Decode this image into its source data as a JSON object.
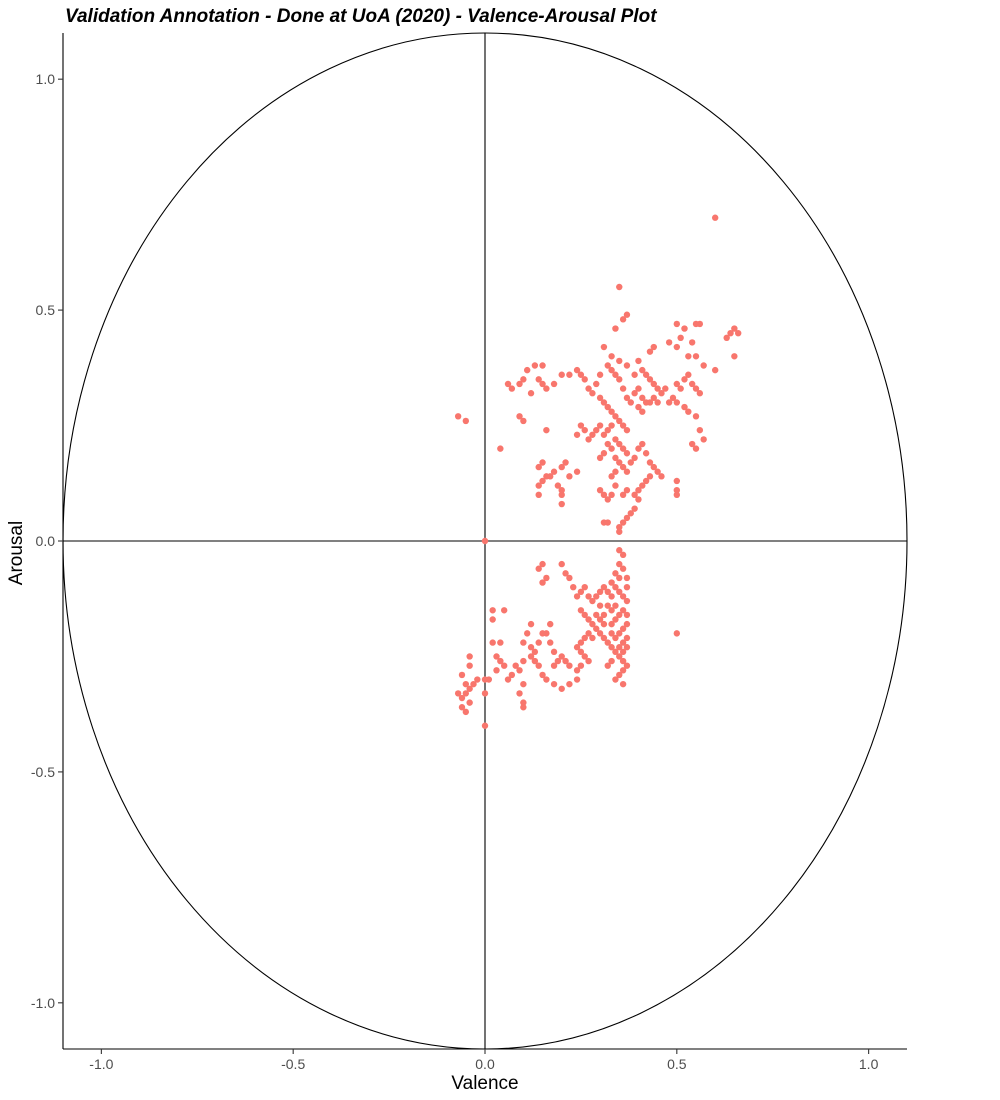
{
  "chart_data": {
    "type": "scatter",
    "title": "Validation Annotation - Done at UoA (2020) - Valence-Arousal Plot",
    "xlabel": "Valence",
    "ylabel": "Arousal",
    "xlim": [
      -1.1,
      1.1
    ],
    "ylim": [
      -1.1,
      1.1
    ],
    "x_ticks": [
      -1.0,
      -0.5,
      0.0,
      0.5,
      1.0
    ],
    "y_ticks": [
      -1.0,
      -0.5,
      0.0,
      0.5,
      1.0
    ],
    "x_tick_labels": [
      "-1.0",
      "-0.5",
      "0.0",
      "0.5",
      "1.0"
    ],
    "y_tick_labels": [
      "-1.0",
      "-0.5",
      "0.0",
      "0.5",
      "1.0"
    ],
    "grid": false,
    "reference_circle_radius": 1.1,
    "reference_lines": [
      "x=0",
      "y=0"
    ],
    "point_color": "#F8766D",
    "line_color": "#000000",
    "points": [
      [
        0.6,
        0.7
      ],
      [
        0.35,
        0.55
      ],
      [
        0.36,
        0.48
      ],
      [
        0.37,
        0.49
      ],
      [
        0.34,
        0.46
      ],
      [
        0.5,
        0.47
      ],
      [
        0.52,
        0.46
      ],
      [
        0.55,
        0.47
      ],
      [
        0.56,
        0.47
      ],
      [
        0.65,
        0.46
      ],
      [
        0.66,
        0.45
      ],
      [
        0.64,
        0.45
      ],
      [
        0.63,
        0.44
      ],
      [
        0.48,
        0.43
      ],
      [
        0.51,
        0.44
      ],
      [
        0.54,
        0.43
      ],
      [
        0.5,
        0.42
      ],
      [
        0.53,
        0.4
      ],
      [
        0.65,
        0.4
      ],
      [
        0.55,
        0.4
      ],
      [
        0.57,
        0.38
      ],
      [
        0.6,
        0.37
      ],
      [
        0.44,
        0.42
      ],
      [
        0.43,
        0.41
      ],
      [
        0.4,
        0.39
      ],
      [
        0.31,
        0.42
      ],
      [
        0.33,
        0.4
      ],
      [
        0.35,
        0.39
      ],
      [
        0.37,
        0.38
      ],
      [
        0.39,
        0.36
      ],
      [
        0.41,
        0.37
      ],
      [
        0.42,
        0.36
      ],
      [
        0.43,
        0.35
      ],
      [
        0.44,
        0.34
      ],
      [
        0.45,
        0.33
      ],
      [
        0.46,
        0.32
      ],
      [
        0.47,
        0.33
      ],
      [
        0.5,
        0.34
      ],
      [
        0.51,
        0.33
      ],
      [
        0.52,
        0.35
      ],
      [
        0.53,
        0.36
      ],
      [
        0.54,
        0.34
      ],
      [
        0.55,
        0.33
      ],
      [
        0.56,
        0.32
      ],
      [
        0.49,
        0.31
      ],
      [
        0.48,
        0.3
      ],
      [
        0.5,
        0.3
      ],
      [
        0.52,
        0.29
      ],
      [
        0.53,
        0.28
      ],
      [
        0.55,
        0.27
      ],
      [
        0.56,
        0.24
      ],
      [
        0.57,
        0.22
      ],
      [
        0.55,
        0.2
      ],
      [
        0.54,
        0.21
      ],
      [
        0.4,
        0.33
      ],
      [
        0.39,
        0.32
      ],
      [
        0.41,
        0.31
      ],
      [
        0.42,
        0.3
      ],
      [
        0.43,
        0.3
      ],
      [
        0.44,
        0.31
      ],
      [
        0.45,
        0.3
      ],
      [
        0.4,
        0.29
      ],
      [
        0.41,
        0.28
      ],
      [
        0.38,
        0.3
      ],
      [
        0.37,
        0.31
      ],
      [
        0.36,
        0.33
      ],
      [
        0.35,
        0.35
      ],
      [
        0.34,
        0.36
      ],
      [
        0.33,
        0.37
      ],
      [
        0.32,
        0.38
      ],
      [
        0.3,
        0.36
      ],
      [
        0.29,
        0.34
      ],
      [
        0.28,
        0.32
      ],
      [
        0.27,
        0.33
      ],
      [
        0.26,
        0.35
      ],
      [
        0.25,
        0.36
      ],
      [
        0.24,
        0.37
      ],
      [
        0.22,
        0.36
      ],
      [
        0.2,
        0.36
      ],
      [
        0.15,
        0.38
      ],
      [
        0.13,
        0.38
      ],
      [
        0.11,
        0.37
      ],
      [
        0.1,
        0.35
      ],
      [
        0.09,
        0.34
      ],
      [
        0.07,
        0.33
      ],
      [
        0.06,
        0.34
      ],
      [
        0.12,
        0.32
      ],
      [
        0.14,
        0.35
      ],
      [
        0.15,
        0.34
      ],
      [
        0.16,
        0.33
      ],
      [
        0.18,
        0.34
      ],
      [
        0.3,
        0.31
      ],
      [
        0.31,
        0.3
      ],
      [
        0.32,
        0.29
      ],
      [
        0.33,
        0.28
      ],
      [
        0.34,
        0.27
      ],
      [
        0.35,
        0.26
      ],
      [
        0.36,
        0.25
      ],
      [
        0.37,
        0.24
      ],
      [
        0.33,
        0.25
      ],
      [
        0.32,
        0.24
      ],
      [
        0.31,
        0.23
      ],
      [
        0.3,
        0.25
      ],
      [
        0.29,
        0.24
      ],
      [
        0.28,
        0.23
      ],
      [
        0.27,
        0.22
      ],
      [
        0.26,
        0.24
      ],
      [
        0.25,
        0.25
      ],
      [
        0.24,
        0.23
      ],
      [
        0.34,
        0.22
      ],
      [
        0.35,
        0.21
      ],
      [
        0.36,
        0.2
      ],
      [
        0.37,
        0.19
      ],
      [
        0.33,
        0.2
      ],
      [
        0.32,
        0.21
      ],
      [
        0.31,
        0.19
      ],
      [
        0.3,
        0.18
      ],
      [
        0.34,
        0.18
      ],
      [
        0.35,
        0.17
      ],
      [
        0.36,
        0.16
      ],
      [
        0.37,
        0.15
      ],
      [
        0.34,
        0.15
      ],
      [
        0.33,
        0.14
      ],
      [
        0.38,
        0.17
      ],
      [
        0.39,
        0.18
      ],
      [
        0.4,
        0.2
      ],
      [
        0.41,
        0.21
      ],
      [
        0.42,
        0.19
      ],
      [
        0.43,
        0.17
      ],
      [
        0.44,
        0.16
      ],
      [
        0.45,
        0.15
      ],
      [
        0.46,
        0.14
      ],
      [
        0.43,
        0.14
      ],
      [
        0.42,
        0.13
      ],
      [
        0.41,
        0.12
      ],
      [
        0.4,
        0.11
      ],
      [
        0.39,
        0.1
      ],
      [
        0.4,
        0.09
      ],
      [
        0.39,
        0.07
      ],
      [
        0.38,
        0.06
      ],
      [
        0.37,
        0.05
      ],
      [
        0.36,
        0.04
      ],
      [
        0.35,
        0.03
      ],
      [
        0.35,
        0.02
      ],
      [
        0.36,
        0.1
      ],
      [
        0.37,
        0.11
      ],
      [
        0.34,
        0.12
      ],
      [
        0.33,
        0.1
      ],
      [
        0.32,
        0.09
      ],
      [
        0.31,
        0.1
      ],
      [
        0.3,
        0.11
      ],
      [
        0.31,
        0.04
      ],
      [
        0.32,
        0.04
      ],
      [
        0.5,
        0.13
      ],
      [
        0.5,
        0.11
      ],
      [
        0.5,
        0.1
      ],
      [
        0.21,
        0.17
      ],
      [
        0.2,
        0.16
      ],
      [
        0.18,
        0.15
      ],
      [
        0.17,
        0.14
      ],
      [
        0.15,
        0.13
      ],
      [
        0.14,
        0.12
      ],
      [
        0.14,
        0.1
      ],
      [
        0.14,
        0.16
      ],
      [
        0.15,
        0.17
      ],
      [
        0.19,
        0.12
      ],
      [
        0.2,
        0.11
      ],
      [
        0.2,
        0.1
      ],
      [
        0.2,
        0.08
      ],
      [
        0.16,
        0.14
      ],
      [
        0.22,
        0.14
      ],
      [
        0.24,
        0.15
      ],
      [
        0.16,
        0.24
      ],
      [
        0.1,
        0.26
      ],
      [
        0.09,
        0.27
      ],
      [
        -0.07,
        0.27
      ],
      [
        -0.05,
        0.26
      ],
      [
        0.04,
        0.2
      ],
      [
        0.0,
        0.0
      ],
      [
        0.35,
        -0.02
      ],
      [
        0.36,
        -0.03
      ],
      [
        0.35,
        -0.05
      ],
      [
        0.36,
        -0.06
      ],
      [
        0.34,
        -0.07
      ],
      [
        0.33,
        -0.09
      ],
      [
        0.34,
        -0.1
      ],
      [
        0.35,
        -0.11
      ],
      [
        0.36,
        -0.12
      ],
      [
        0.37,
        -0.13
      ],
      [
        0.33,
        -0.12
      ],
      [
        0.32,
        -0.11
      ],
      [
        0.31,
        -0.1
      ],
      [
        0.3,
        -0.11
      ],
      [
        0.29,
        -0.12
      ],
      [
        0.28,
        -0.13
      ],
      [
        0.27,
        -0.12
      ],
      [
        0.26,
        -0.1
      ],
      [
        0.25,
        -0.11
      ],
      [
        0.24,
        -0.12
      ],
      [
        0.23,
        -0.1
      ],
      [
        0.22,
        -0.08
      ],
      [
        0.21,
        -0.07
      ],
      [
        0.2,
        -0.05
      ],
      [
        0.15,
        -0.05
      ],
      [
        0.14,
        -0.06
      ],
      [
        0.16,
        -0.08
      ],
      [
        0.15,
        -0.09
      ],
      [
        0.25,
        -0.15
      ],
      [
        0.26,
        -0.16
      ],
      [
        0.27,
        -0.17
      ],
      [
        0.28,
        -0.18
      ],
      [
        0.29,
        -0.19
      ],
      [
        0.3,
        -0.2
      ],
      [
        0.31,
        -0.21
      ],
      [
        0.32,
        -0.22
      ],
      [
        0.33,
        -0.23
      ],
      [
        0.34,
        -0.24
      ],
      [
        0.35,
        -0.25
      ],
      [
        0.36,
        -0.26
      ],
      [
        0.37,
        -0.27
      ],
      [
        0.36,
        -0.28
      ],
      [
        0.35,
        -0.29
      ],
      [
        0.34,
        -0.3
      ],
      [
        0.36,
        -0.31
      ],
      [
        0.33,
        -0.18
      ],
      [
        0.34,
        -0.17
      ],
      [
        0.35,
        -0.16
      ],
      [
        0.36,
        -0.15
      ],
      [
        0.37,
        -0.16
      ],
      [
        0.37,
        -0.18
      ],
      [
        0.36,
        -0.19
      ],
      [
        0.35,
        -0.2
      ],
      [
        0.37,
        -0.21
      ],
      [
        0.37,
        -0.23
      ],
      [
        0.36,
        -0.22
      ],
      [
        0.34,
        -0.21
      ],
      [
        0.33,
        -0.2
      ],
      [
        0.31,
        -0.18
      ],
      [
        0.3,
        -0.17
      ],
      [
        0.29,
        -0.16
      ],
      [
        0.28,
        -0.21
      ],
      [
        0.27,
        -0.2
      ],
      [
        0.26,
        -0.21
      ],
      [
        0.25,
        -0.22
      ],
      [
        0.24,
        -0.23
      ],
      [
        0.25,
        -0.24
      ],
      [
        0.26,
        -0.25
      ],
      [
        0.27,
        -0.26
      ],
      [
        0.25,
        -0.27
      ],
      [
        0.24,
        -0.28
      ],
      [
        0.22,
        -0.27
      ],
      [
        0.21,
        -0.26
      ],
      [
        0.2,
        -0.25
      ],
      [
        0.19,
        -0.26
      ],
      [
        0.18,
        -0.27
      ],
      [
        0.18,
        -0.24
      ],
      [
        0.17,
        -0.22
      ],
      [
        0.16,
        -0.2
      ],
      [
        0.15,
        -0.2
      ],
      [
        0.14,
        -0.22
      ],
      [
        0.13,
        -0.24
      ],
      [
        0.12,
        -0.23
      ],
      [
        0.12,
        -0.25
      ],
      [
        0.13,
        -0.26
      ],
      [
        0.14,
        -0.27
      ],
      [
        0.15,
        -0.29
      ],
      [
        0.16,
        -0.3
      ],
      [
        0.18,
        -0.31
      ],
      [
        0.2,
        -0.32
      ],
      [
        0.22,
        -0.31
      ],
      [
        0.24,
        -0.3
      ],
      [
        0.5,
        -0.2
      ],
      [
        0.17,
        -0.18
      ],
      [
        0.12,
        -0.18
      ],
      [
        0.11,
        -0.2
      ],
      [
        0.1,
        -0.22
      ],
      [
        0.1,
        -0.26
      ],
      [
        0.09,
        -0.28
      ],
      [
        0.08,
        -0.27
      ],
      [
        0.07,
        -0.29
      ],
      [
        0.1,
        -0.31
      ],
      [
        0.09,
        -0.33
      ],
      [
        0.1,
        -0.35
      ],
      [
        0.1,
        -0.36
      ],
      [
        0.06,
        -0.3
      ],
      [
        0.05,
        -0.27
      ],
      [
        0.04,
        -0.26
      ],
      [
        0.03,
        -0.25
      ],
      [
        0.02,
        -0.22
      ],
      [
        0.02,
        -0.17
      ],
      [
        0.02,
        -0.15
      ],
      [
        0.05,
        -0.15
      ],
      [
        0.04,
        -0.22
      ],
      [
        0.03,
        -0.28
      ],
      [
        0.01,
        -0.3
      ],
      [
        0.0,
        -0.33
      ],
      [
        0.0,
        -0.3
      ],
      [
        -0.02,
        -0.3
      ],
      [
        -0.03,
        -0.31
      ],
      [
        -0.04,
        -0.32
      ],
      [
        -0.05,
        -0.33
      ],
      [
        -0.06,
        -0.34
      ],
      [
        -0.07,
        -0.33
      ],
      [
        -0.06,
        -0.36
      ],
      [
        -0.05,
        -0.37
      ],
      [
        -0.04,
        -0.35
      ],
      [
        -0.05,
        -0.31
      ],
      [
        -0.06,
        -0.29
      ],
      [
        -0.04,
        -0.27
      ],
      [
        -0.04,
        -0.25
      ],
      [
        0.0,
        -0.4
      ],
      [
        0.3,
        -0.14
      ],
      [
        0.31,
        -0.16
      ],
      [
        0.32,
        -0.14
      ],
      [
        0.33,
        -0.15
      ],
      [
        0.34,
        -0.14
      ],
      [
        0.37,
        -0.1
      ],
      [
        0.37,
        -0.08
      ],
      [
        0.35,
        -0.08
      ],
      [
        0.33,
        -0.26
      ],
      [
        0.32,
        -0.27
      ],
      [
        0.35,
        -0.23
      ],
      [
        0.36,
        -0.24
      ]
    ]
  }
}
